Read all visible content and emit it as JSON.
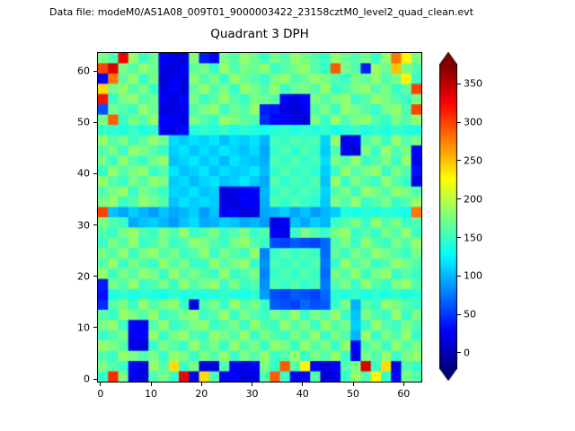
{
  "header": {
    "data_file_label": "Data file: modeM0/AS1A08_009T01_9000003422_23158cztM0_level2_quad_clean.evt"
  },
  "chart_data": {
    "type": "heatmap",
    "title": "Quadrant 3 DPH",
    "xlabel": "",
    "ylabel": "",
    "x_range": [
      -0.5,
      63.5
    ],
    "y_range": [
      -0.5,
      63.5
    ],
    "x_ticks": [
      0,
      10,
      20,
      30,
      40,
      50,
      60
    ],
    "y_ticks": [
      0,
      10,
      20,
      30,
      40,
      50,
      60
    ],
    "colormap": "jet",
    "grid": false,
    "legend": "none",
    "colorbar": {
      "ticks": [
        0,
        50,
        100,
        150,
        200,
        250,
        300,
        350
      ],
      "vmin": -20,
      "vmax": 375,
      "extend": "both",
      "position": "right"
    },
    "grid_rows": 32,
    "grid_cols": 32,
    "row_order": "top-to-bottom",
    "values": [
      [
        175,
        160,
        330,
        185,
        150,
        170,
        25,
        20,
        15,
        180,
        40,
        30,
        175,
        160,
        185,
        170,
        150,
        175,
        160,
        185,
        175,
        160,
        150,
        185,
        170,
        160,
        175,
        150,
        185,
        280,
        230,
        175
      ],
      [
        300,
        340,
        175,
        160,
        185,
        170,
        20,
        15,
        25,
        165,
        175,
        150,
        185,
        160,
        175,
        170,
        185,
        150,
        160,
        175,
        185,
        160,
        150,
        290,
        175,
        160,
        40,
        185,
        170,
        250,
        175,
        160
      ],
      [
        30,
        280,
        165,
        185,
        150,
        175,
        15,
        25,
        20,
        180,
        160,
        175,
        150,
        185,
        170,
        160,
        150,
        175,
        185,
        160,
        170,
        185,
        175,
        160,
        150,
        175,
        165,
        185,
        160,
        175,
        230,
        150
      ],
      [
        240,
        170,
        185,
        160,
        175,
        150,
        20,
        30,
        15,
        165,
        185,
        160,
        175,
        150,
        185,
        175,
        160,
        185,
        150,
        170,
        175,
        160,
        185,
        150,
        160,
        175,
        185,
        160,
        175,
        150,
        165,
        300
      ],
      [
        320,
        150,
        175,
        185,
        160,
        170,
        25,
        15,
        30,
        175,
        150,
        165,
        185,
        160,
        150,
        175,
        170,
        160,
        25,
        20,
        30,
        175,
        160,
        175,
        185,
        150,
        160,
        185,
        175,
        160,
        150,
        175
      ],
      [
        60,
        175,
        160,
        150,
        185,
        170,
        15,
        20,
        25,
        160,
        175,
        185,
        150,
        170,
        160,
        185,
        40,
        35,
        20,
        15,
        25,
        160,
        175,
        150,
        185,
        175,
        160,
        150,
        175,
        185,
        160,
        300
      ],
      [
        175,
        290,
        150,
        175,
        160,
        185,
        30,
        25,
        20,
        175,
        160,
        150,
        185,
        175,
        165,
        160,
        45,
        30,
        25,
        20,
        15,
        175,
        150,
        185,
        160,
        175,
        185,
        160,
        150,
        175,
        160,
        185
      ],
      [
        150,
        145,
        140,
        150,
        138,
        145,
        25,
        20,
        30,
        140,
        148,
        142,
        150,
        138,
        145,
        140,
        135,
        142,
        148,
        138,
        145,
        140,
        148,
        135,
        142,
        150,
        138,
        145,
        140,
        148,
        142,
        138
      ],
      [
        185,
        160,
        175,
        150,
        165,
        185,
        170,
        115,
        108,
        118,
        112,
        120,
        105,
        115,
        110,
        118,
        100,
        155,
        148,
        160,
        152,
        158,
        112,
        185,
        20,
        30,
        160,
        175,
        150,
        185,
        160,
        175
      ],
      [
        160,
        175,
        150,
        185,
        175,
        160,
        150,
        110,
        118,
        105,
        115,
        108,
        120,
        112,
        105,
        115,
        95,
        150,
        158,
        145,
        160,
        150,
        108,
        160,
        25,
        15,
        175,
        150,
        185,
        160,
        175,
        30
      ],
      [
        175,
        150,
        185,
        160,
        150,
        175,
        185,
        105,
        112,
        120,
        108,
        115,
        102,
        118,
        110,
        105,
        98,
        158,
        150,
        160,
        148,
        155,
        115,
        175,
        160,
        185,
        150,
        160,
        175,
        150,
        185,
        25
      ],
      [
        150,
        185,
        160,
        175,
        185,
        150,
        160,
        118,
        105,
        110,
        120,
        105,
        115,
        108,
        112,
        120,
        102,
        148,
        160,
        150,
        155,
        145,
        110,
        150,
        185,
        160,
        175,
        185,
        150,
        175,
        160,
        35
      ],
      [
        185,
        160,
        150,
        175,
        160,
        185,
        175,
        108,
        115,
        102,
        112,
        118,
        105,
        110,
        120,
        108,
        95,
        160,
        145,
        158,
        150,
        160,
        105,
        185,
        150,
        175,
        160,
        150,
        185,
        160,
        150,
        20
      ],
      [
        160,
        175,
        185,
        150,
        175,
        160,
        150,
        112,
        108,
        118,
        105,
        110,
        15,
        20,
        25,
        30,
        100,
        150,
        160,
        148,
        158,
        150,
        112,
        160,
        175,
        150,
        185,
        175,
        160,
        185,
        175,
        160
      ],
      [
        175,
        185,
        150,
        160,
        185,
        175,
        160,
        105,
        118,
        110,
        115,
        108,
        20,
        15,
        30,
        25,
        98,
        158,
        148,
        160,
        150,
        145,
        108,
        175,
        160,
        185,
        150,
        160,
        175,
        150,
        160,
        185
      ],
      [
        300,
        105,
        95,
        110,
        100,
        90,
        105,
        95,
        100,
        110,
        90,
        105,
        25,
        30,
        15,
        20,
        95,
        100,
        110,
        95,
        105,
        90,
        100,
        110,
        140,
        135,
        142,
        138,
        145,
        140,
        135,
        280
      ],
      [
        175,
        160,
        150,
        95,
        105,
        110,
        100,
        90,
        105,
        115,
        95,
        100,
        110,
        105,
        95,
        100,
        90,
        20,
        25,
        105,
        95,
        110,
        100,
        150,
        160,
        175,
        150,
        185,
        160,
        175,
        150,
        160
      ],
      [
        160,
        150,
        175,
        185,
        160,
        150,
        175,
        160,
        185,
        150,
        160,
        175,
        150,
        160,
        175,
        150,
        160,
        25,
        20,
        150,
        175,
        160,
        150,
        175,
        185,
        150,
        160,
        150,
        175,
        160,
        185,
        150
      ],
      [
        150,
        175,
        160,
        185,
        150,
        160,
        175,
        150,
        160,
        185,
        175,
        160,
        150,
        175,
        185,
        160,
        150,
        60,
        55,
        65,
        60,
        55,
        70,
        160,
        175,
        150,
        185,
        160,
        150,
        175,
        160,
        185
      ],
      [
        175,
        160,
        185,
        150,
        175,
        185,
        160,
        175,
        150,
        160,
        185,
        150,
        175,
        160,
        150,
        185,
        80,
        150,
        160,
        150,
        158,
        150,
        70,
        165,
        150,
        175,
        160,
        185,
        175,
        160,
        150,
        175
      ],
      [
        160,
        185,
        150,
        175,
        160,
        150,
        185,
        160,
        175,
        150,
        150,
        185,
        160,
        175,
        185,
        150,
        85,
        155,
        148,
        158,
        150,
        160,
        75,
        150,
        185,
        160,
        175,
        150,
        160,
        185,
        175,
        160
      ],
      [
        185,
        150,
        175,
        160,
        185,
        175,
        150,
        185,
        160,
        175,
        160,
        150,
        185,
        150,
        160,
        175,
        80,
        150,
        158,
        148,
        160,
        150,
        70,
        175,
        160,
        185,
        150,
        175,
        185,
        150,
        160,
        150
      ],
      [
        40,
        175,
        160,
        185,
        150,
        160,
        175,
        150,
        185,
        160,
        175,
        185,
        150,
        175,
        150,
        160,
        85,
        158,
        150,
        160,
        148,
        155,
        75,
        160,
        175,
        150,
        185,
        160,
        150,
        175,
        185,
        160
      ],
      [
        35,
        140,
        148,
        138,
        145,
        140,
        135,
        148,
        140,
        145,
        138,
        142,
        148,
        140,
        138,
        145,
        90,
        60,
        55,
        65,
        60,
        55,
        70,
        145,
        140,
        148,
        138,
        145,
        140,
        148,
        138,
        145
      ],
      [
        45,
        160,
        175,
        150,
        185,
        160,
        175,
        185,
        150,
        20,
        160,
        175,
        150,
        185,
        160,
        175,
        150,
        65,
        60,
        55,
        70,
        60,
        65,
        150,
        175,
        100,
        160,
        150,
        185,
        175,
        160,
        150
      ],
      [
        160,
        150,
        185,
        175,
        160,
        185,
        150,
        160,
        175,
        185,
        150,
        160,
        185,
        150,
        175,
        160,
        150,
        175,
        160,
        185,
        150,
        175,
        160,
        185,
        150,
        105,
        175,
        160,
        150,
        185,
        150,
        175
      ],
      [
        175,
        185,
        150,
        30,
        25,
        160,
        185,
        150,
        160,
        175,
        185,
        150,
        160,
        175,
        150,
        185,
        160,
        150,
        185,
        160,
        175,
        150,
        185,
        160,
        175,
        110,
        150,
        185,
        160,
        150,
        175,
        160
      ],
      [
        150,
        160,
        175,
        25,
        30,
        185,
        150,
        175,
        185,
        160,
        150,
        185,
        175,
        160,
        185,
        150,
        175,
        160,
        150,
        175,
        160,
        185,
        150,
        175,
        160,
        100,
        185,
        150,
        175,
        160,
        185,
        150
      ],
      [
        185,
        175,
        160,
        20,
        15,
        150,
        175,
        160,
        150,
        185,
        160,
        175,
        150,
        185,
        160,
        175,
        150,
        185,
        175,
        150,
        185,
        160,
        175,
        150,
        185,
        30,
        160,
        175,
        150,
        185,
        160,
        175
      ],
      [
        160,
        150,
        185,
        175,
        160,
        175,
        150,
        185,
        175,
        150,
        175,
        160,
        185,
        150,
        175,
        160,
        185,
        150,
        160,
        185,
        150,
        175,
        160,
        185,
        150,
        25,
        175,
        160,
        185,
        150,
        175,
        185
      ],
      [
        175,
        160,
        150,
        30,
        20,
        185,
        160,
        240,
        150,
        175,
        20,
        15,
        160,
        25,
        20,
        30,
        175,
        150,
        290,
        160,
        230,
        25,
        15,
        30,
        160,
        175,
        340,
        150,
        240,
        20,
        160,
        150
      ],
      [
        150,
        310,
        175,
        25,
        15,
        160,
        175,
        150,
        330,
        20,
        240,
        160,
        25,
        30,
        15,
        20,
        160,
        290,
        150,
        25,
        30,
        160,
        15,
        20,
        150,
        185,
        160,
        230,
        150,
        30,
        175,
        160
      ]
    ]
  }
}
